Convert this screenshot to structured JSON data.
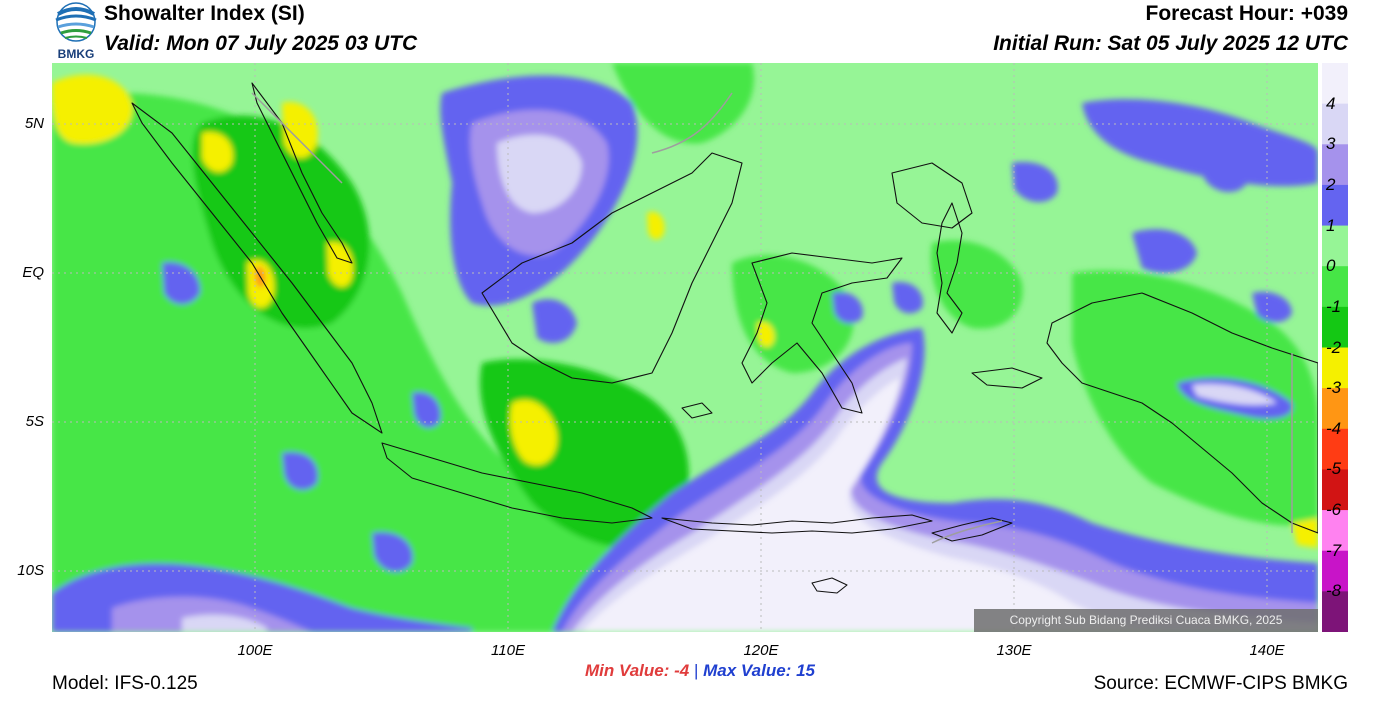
{
  "header": {
    "title": "Showalter Index (SI)",
    "valid": "Valid: Mon 07 July 2025 03 UTC",
    "forecast_hour": "Forecast Hour: +039",
    "initial_run": "Initial Run: Sat 05 July 2025 12 UTC"
  },
  "logo": {
    "text": "BMKG"
  },
  "axes": {
    "lat_labels": [
      "5N",
      "EQ",
      "5S",
      "10S"
    ],
    "lon_labels": [
      "100E",
      "110E",
      "120E",
      "130E",
      "140E"
    ]
  },
  "colorbar": {
    "labels": [
      "4",
      "3",
      "2",
      "1",
      "0",
      "-1",
      "-2",
      "-3",
      "-4",
      "-5",
      "-6",
      "-7",
      "-8"
    ],
    "colors": [
      "#f2f0fb",
      "#d9d7f5",
      "#a592ec",
      "#6464f0",
      "#96f596",
      "#46e646",
      "#14c814",
      "#f5f000",
      "#ff9614",
      "#ff3c14",
      "#d21414",
      "#ff82f0",
      "#c814c8",
      "#7d1478"
    ]
  },
  "stats": {
    "min_label": "Min Value:",
    "min_value": "-4",
    "separator": "|",
    "max_label": "Max Value:",
    "max_value": "15"
  },
  "footer": {
    "model": "Model: IFS-0.125",
    "source": "Source: ECMWF-CIPS BMKG"
  },
  "copyright": "Copyright Sub Bidang Prediksi Cuaca BMKG, 2025"
}
